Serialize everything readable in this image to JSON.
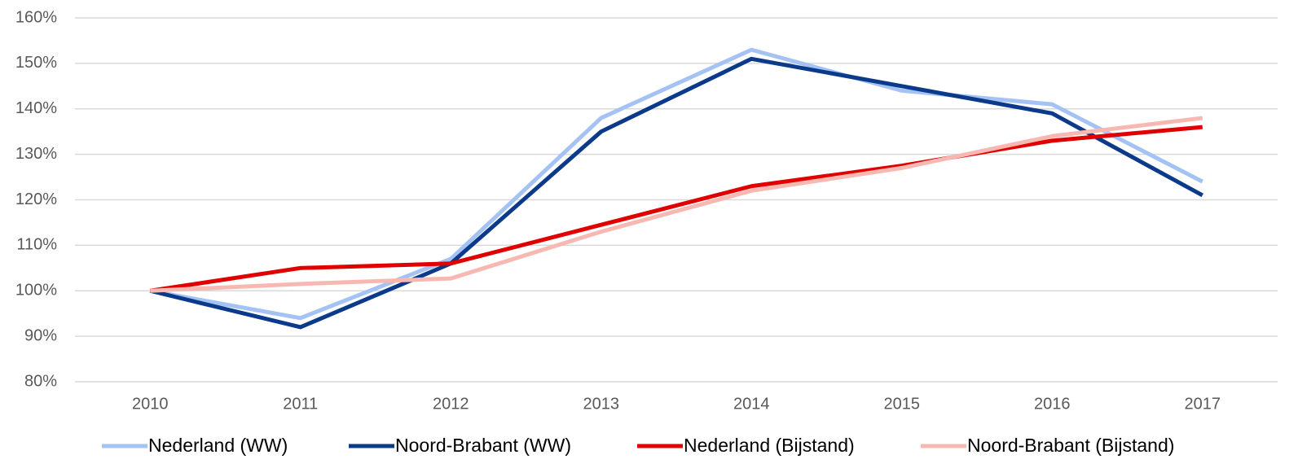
{
  "chart_data": {
    "type": "line",
    "categories": [
      "2010",
      "2011",
      "2012",
      "2013",
      "2014",
      "2015",
      "2016",
      "2017"
    ],
    "series": [
      {
        "name": "Nederland (WW)",
        "color": "#a4c2f4",
        "values": [
          100,
          94,
          107,
          138,
          153,
          144,
          141,
          124
        ]
      },
      {
        "name": "Noord-Brabant (WW)",
        "color": "#0b3a8a",
        "values": [
          100,
          92,
          106,
          135,
          151,
          145,
          139,
          121
        ]
      },
      {
        "name": "Nederland (Bijstand)",
        "color": "#e00000",
        "values": [
          100,
          105,
          106,
          114.5,
          123,
          127.5,
          133,
          136
        ]
      },
      {
        "name": "Noord-Brabant (Bijstand)",
        "color": "#f8b8b2",
        "values": [
          100,
          101.5,
          102.7,
          113,
          122,
          127,
          134,
          138
        ]
      }
    ],
    "ylim": [
      80,
      160
    ],
    "yticks": [
      {
        "value": 80,
        "label": "80%"
      },
      {
        "value": 90,
        "label": "90%"
      },
      {
        "value": 100,
        "label": "100%"
      },
      {
        "value": 110,
        "label": "110%"
      },
      {
        "value": 120,
        "label": "120%"
      },
      {
        "value": 130,
        "label": "130%"
      },
      {
        "value": 140,
        "label": "140%"
      },
      {
        "value": 150,
        "label": "150%"
      },
      {
        "value": 160,
        "label": "160%"
      }
    ],
    "grid": true,
    "legend": "bottom"
  }
}
